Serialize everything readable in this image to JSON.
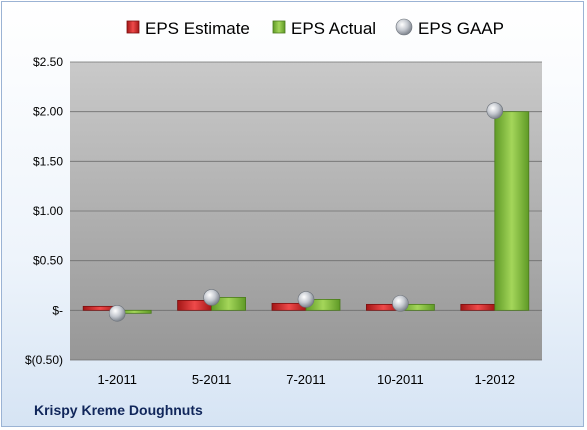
{
  "chart_data": {
    "type": "bar",
    "categories": [
      "1-2011",
      "5-2011",
      "7-2011",
      "10-2011",
      "1-2012"
    ],
    "series": [
      {
        "name": "EPS Estimate",
        "values": [
          0.04,
          0.1,
          0.07,
          0.06,
          0.06
        ],
        "color": "#d42a2a"
      },
      {
        "name": "EPS Actual",
        "values": [
          -0.03,
          0.13,
          0.11,
          0.06,
          2.0
        ],
        "color": "#8dc63f"
      },
      {
        "name": "EPS GAAP",
        "values": [
          -0.03,
          0.13,
          0.11,
          0.07,
          2.01
        ],
        "color": "#b8bcc4"
      }
    ],
    "ylim": [
      -0.5,
      2.5
    ],
    "yticks": [
      -0.5,
      0,
      0.5,
      1.0,
      1.5,
      2.0,
      2.5
    ],
    "ytick_labels": [
      "$(0.50)",
      "$-",
      "$0.50",
      "$1.00",
      "$1.50",
      "$2.00",
      "$2.50"
    ],
    "grid": true,
    "legend_position": "top",
    "footer": "Krispy Kreme Doughnuts"
  }
}
